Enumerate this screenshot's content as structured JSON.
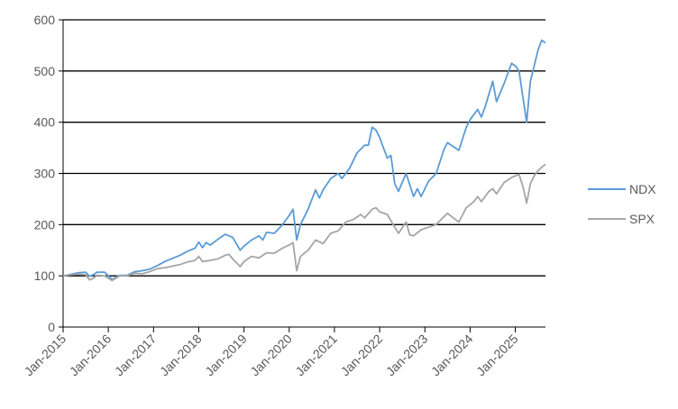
{
  "chart_data": {
    "type": "line",
    "title": "",
    "xlabel": "",
    "ylabel": "",
    "ylim": [
      0,
      600
    ],
    "yticks": [
      "0",
      "100",
      "200",
      "300",
      "400",
      "500",
      "600"
    ],
    "xticks": [
      "Jan-2015",
      "Jan-2016",
      "Jan-2017",
      "Jan-2018",
      "Jan-2019",
      "Jan-2020",
      "Jan-2021",
      "Jan-2022",
      "Jan-2023",
      "Jan-2024",
      "Jan-2025"
    ],
    "xlim": [
      "2015-01",
      "2025-09"
    ],
    "grid": "horizontal",
    "legend": "right",
    "series": [
      {
        "name": "NDX",
        "color": "#5B9BD5",
        "points": [
          [
            "2015-01",
            100
          ],
          [
            "2015-03",
            103
          ],
          [
            "2015-05",
            106
          ],
          [
            "2015-07",
            107
          ],
          [
            "2015-08",
            99
          ],
          [
            "2015-09",
            102
          ],
          [
            "2015-10",
            107
          ],
          [
            "2015-12",
            107
          ],
          [
            "2016-02",
            93
          ],
          [
            "2016-04",
            101
          ],
          [
            "2016-06",
            101
          ],
          [
            "2016-08",
            108
          ],
          [
            "2016-10",
            110
          ],
          [
            "2016-12",
            113
          ],
          [
            "2017-02",
            120
          ],
          [
            "2017-04",
            128
          ],
          [
            "2017-06",
            134
          ],
          [
            "2017-08",
            140
          ],
          [
            "2017-10",
            148
          ],
          [
            "2017-12",
            154
          ],
          [
            "2018-01",
            166
          ],
          [
            "2018-02",
            155
          ],
          [
            "2018-03",
            165
          ],
          [
            "2018-04",
            160
          ],
          [
            "2018-06",
            171
          ],
          [
            "2018-08",
            181
          ],
          [
            "2018-10",
            175
          ],
          [
            "2018-12",
            150
          ],
          [
            "2019-01",
            158
          ],
          [
            "2019-03",
            170
          ],
          [
            "2019-05",
            178
          ],
          [
            "2019-06",
            170
          ],
          [
            "2019-07",
            185
          ],
          [
            "2019-09",
            183
          ],
          [
            "2019-11",
            198
          ],
          [
            "2019-12",
            208
          ],
          [
            "2020-01",
            218
          ],
          [
            "2020-02",
            230
          ],
          [
            "2020-03",
            170
          ],
          [
            "2020-04",
            200
          ],
          [
            "2020-06",
            230
          ],
          [
            "2020-08",
            268
          ],
          [
            "2020-09",
            252
          ],
          [
            "2020-10",
            268
          ],
          [
            "2020-12",
            290
          ],
          [
            "2021-02",
            300
          ],
          [
            "2021-03",
            290
          ],
          [
            "2021-05",
            310
          ],
          [
            "2021-07",
            340
          ],
          [
            "2021-09",
            355
          ],
          [
            "2021-10",
            355
          ],
          [
            "2021-11",
            390
          ],
          [
            "2021-12",
            385
          ],
          [
            "2022-01",
            370
          ],
          [
            "2022-03",
            330
          ],
          [
            "2022-04",
            335
          ],
          [
            "2022-05",
            280
          ],
          [
            "2022-06",
            265
          ],
          [
            "2022-08",
            300
          ],
          [
            "2022-10",
            255
          ],
          [
            "2022-11",
            270
          ],
          [
            "2022-12",
            255
          ],
          [
            "2023-02",
            285
          ],
          [
            "2023-04",
            300
          ],
          [
            "2023-06",
            345
          ],
          [
            "2023-07",
            360
          ],
          [
            "2023-10",
            345
          ],
          [
            "2023-12",
            390
          ],
          [
            "2024-01",
            405
          ],
          [
            "2024-03",
            425
          ],
          [
            "2024-04",
            410
          ],
          [
            "2024-05",
            430
          ],
          [
            "2024-07",
            480
          ],
          [
            "2024-08",
            440
          ],
          [
            "2024-10",
            475
          ],
          [
            "2024-12",
            515
          ],
          [
            "2025-01",
            510
          ],
          [
            "2025-02",
            500
          ],
          [
            "2025-03",
            450
          ],
          [
            "2025-04",
            400
          ],
          [
            "2025-05",
            480
          ],
          [
            "2025-06",
            510
          ],
          [
            "2025-07",
            540
          ],
          [
            "2025-08",
            560
          ],
          [
            "2025-09",
            555
          ]
        ]
      },
      {
        "name": "SPX",
        "color": "#A5A5A5",
        "points": [
          [
            "2015-01",
            100
          ],
          [
            "2015-03",
            102
          ],
          [
            "2015-05",
            103
          ],
          [
            "2015-07",
            102
          ],
          [
            "2015-08",
            92
          ],
          [
            "2015-09",
            95
          ],
          [
            "2015-10",
            101
          ],
          [
            "2015-12",
            100
          ],
          [
            "2016-02",
            91
          ],
          [
            "2016-04",
            100
          ],
          [
            "2016-06",
            100
          ],
          [
            "2016-08",
            105
          ],
          [
            "2016-10",
            104
          ],
          [
            "2016-12",
            108
          ],
          [
            "2017-02",
            114
          ],
          [
            "2017-04",
            116
          ],
          [
            "2017-06",
            119
          ],
          [
            "2017-08",
            122
          ],
          [
            "2017-10",
            127
          ],
          [
            "2017-12",
            130
          ],
          [
            "2018-01",
            138
          ],
          [
            "2018-02",
            128
          ],
          [
            "2018-04",
            130
          ],
          [
            "2018-06",
            133
          ],
          [
            "2018-08",
            140
          ],
          [
            "2018-09",
            142
          ],
          [
            "2018-10",
            133
          ],
          [
            "2018-12",
            118
          ],
          [
            "2019-01",
            128
          ],
          [
            "2019-03",
            138
          ],
          [
            "2019-05",
            135
          ],
          [
            "2019-07",
            145
          ],
          [
            "2019-09",
            144
          ],
          [
            "2019-11",
            153
          ],
          [
            "2019-12",
            157
          ],
          [
            "2020-01",
            160
          ],
          [
            "2020-02",
            165
          ],
          [
            "2020-03",
            110
          ],
          [
            "2020-04",
            138
          ],
          [
            "2020-06",
            150
          ],
          [
            "2020-08",
            170
          ],
          [
            "2020-10",
            163
          ],
          [
            "2020-12",
            183
          ],
          [
            "2021-02",
            188
          ],
          [
            "2021-04",
            205
          ],
          [
            "2021-06",
            210
          ],
          [
            "2021-08",
            220
          ],
          [
            "2021-09",
            213
          ],
          [
            "2021-11",
            230
          ],
          [
            "2021-12",
            233
          ],
          [
            "2022-01",
            225
          ],
          [
            "2022-03",
            220
          ],
          [
            "2022-05",
            195
          ],
          [
            "2022-06",
            183
          ],
          [
            "2022-08",
            205
          ],
          [
            "2022-09",
            180
          ],
          [
            "2022-10",
            178
          ],
          [
            "2022-12",
            190
          ],
          [
            "2023-02",
            195
          ],
          [
            "2023-04",
            200
          ],
          [
            "2023-06",
            215
          ],
          [
            "2023-07",
            222
          ],
          [
            "2023-10",
            205
          ],
          [
            "2023-12",
            233
          ],
          [
            "2024-02",
            245
          ],
          [
            "2024-03",
            255
          ],
          [
            "2024-04",
            245
          ],
          [
            "2024-06",
            265
          ],
          [
            "2024-07",
            270
          ],
          [
            "2024-08",
            260
          ],
          [
            "2024-10",
            282
          ],
          [
            "2024-12",
            292
          ],
          [
            "2025-02",
            298
          ],
          [
            "2025-03",
            275
          ],
          [
            "2025-04",
            242
          ],
          [
            "2025-05",
            280
          ],
          [
            "2025-06",
            295
          ],
          [
            "2025-07",
            305
          ],
          [
            "2025-08",
            312
          ],
          [
            "2025-09",
            318
          ]
        ]
      }
    ]
  }
}
